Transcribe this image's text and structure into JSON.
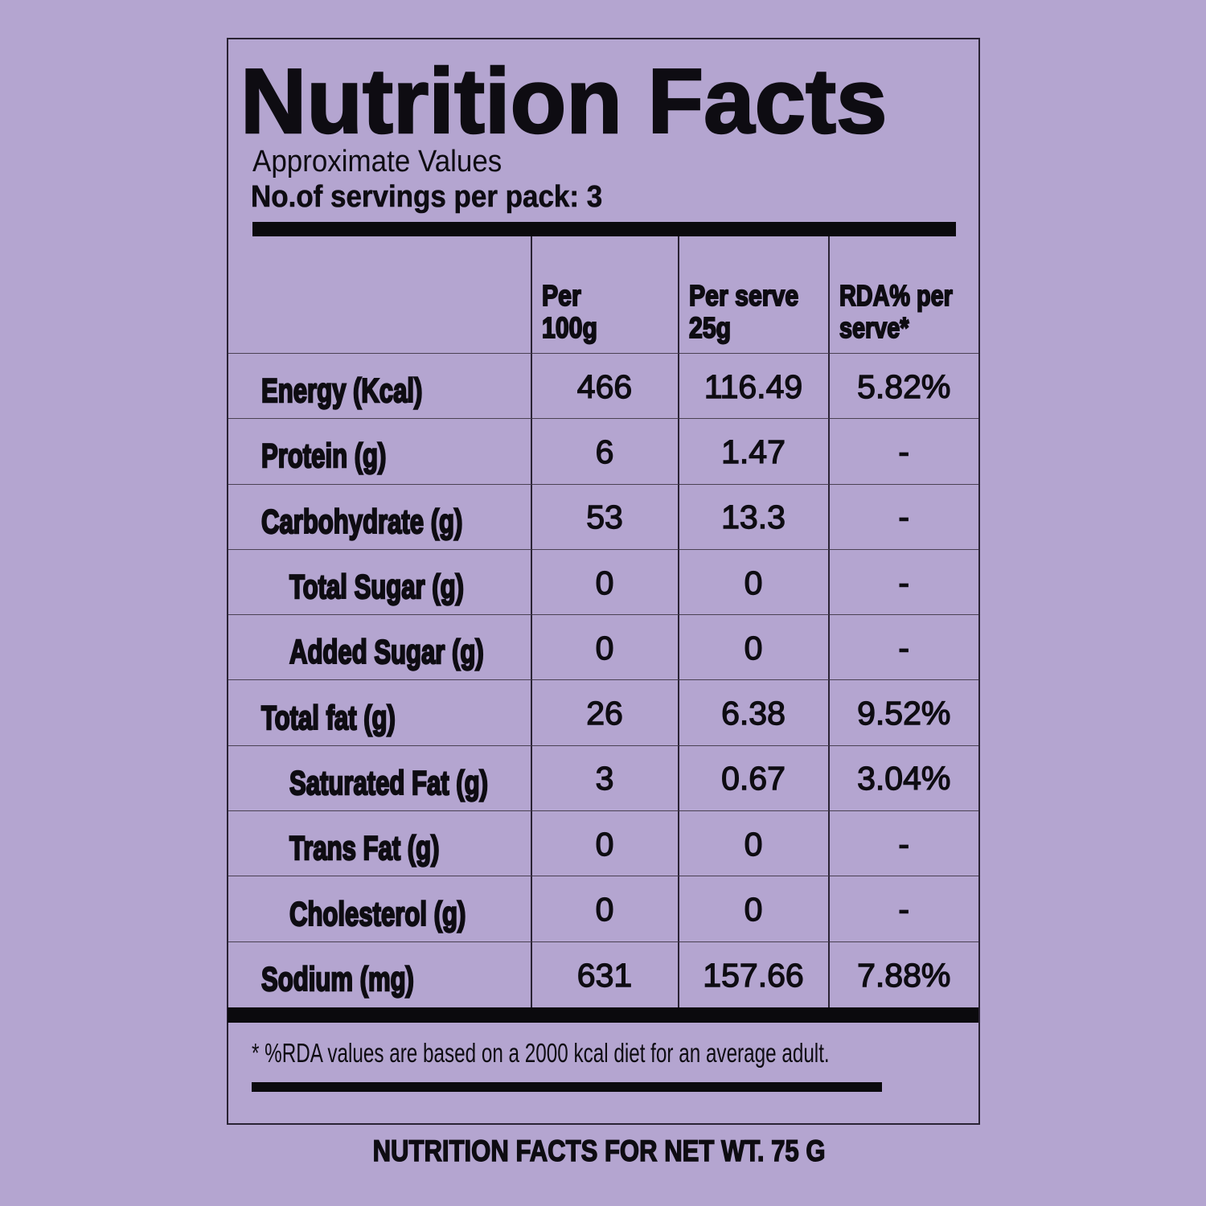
{
  "colors": {
    "background": "#b4a5d0",
    "text": "#0e0c12",
    "bar": "#0b0a0d",
    "grid_vertical": "#2a2334",
    "grid_horizontal": "#4a4153",
    "panel_border": "#2a2334"
  },
  "label": {
    "title": "Nutrition Facts",
    "subtitle": "Approximate Values",
    "servings": "No.of servings per pack: 3",
    "footnote": "* %RDA values are based on a 2000 kcal diet for an average adult."
  },
  "table": {
    "header": {
      "col_per_100g": "Per\n100g",
      "col_per_serve": "Per serve\n25g",
      "col_rda": "RDA% per\nserve*"
    },
    "rows": [
      {
        "label": "Energy (Kcal)",
        "indent": false,
        "per100": "466",
        "perServe": "116.49",
        "rda": "5.82%"
      },
      {
        "label": "Protein (g)",
        "indent": false,
        "per100": "6",
        "perServe": "1.47",
        "rda": "-"
      },
      {
        "label": "Carbohydrate (g)",
        "indent": false,
        "per100": "53",
        "perServe": "13.3",
        "rda": "-"
      },
      {
        "label": "Total Sugar (g)",
        "indent": true,
        "per100": "0",
        "perServe": "0",
        "rda": "-"
      },
      {
        "label": "Added Sugar (g)",
        "indent": true,
        "per100": "0",
        "perServe": "0",
        "rda": "-"
      },
      {
        "label": "Total fat (g)",
        "indent": false,
        "per100": "26",
        "perServe": "6.38",
        "rda": "9.52%"
      },
      {
        "label": "Saturated Fat (g)",
        "indent": true,
        "per100": "3",
        "perServe": "0.67",
        "rda": "3.04%"
      },
      {
        "label": "Trans Fat (g)",
        "indent": true,
        "per100": "0",
        "perServe": "0",
        "rda": "-"
      },
      {
        "label": "Cholesterol (g)",
        "indent": true,
        "per100": "0",
        "perServe": "0",
        "rda": "-"
      },
      {
        "label": "Sodium (mg)",
        "indent": false,
        "per100": "631",
        "perServe": "157.66",
        "rda": "7.88%"
      }
    ]
  },
  "footer": {
    "text": "NUTRITION FACTS FOR NET WT. 75 G"
  }
}
